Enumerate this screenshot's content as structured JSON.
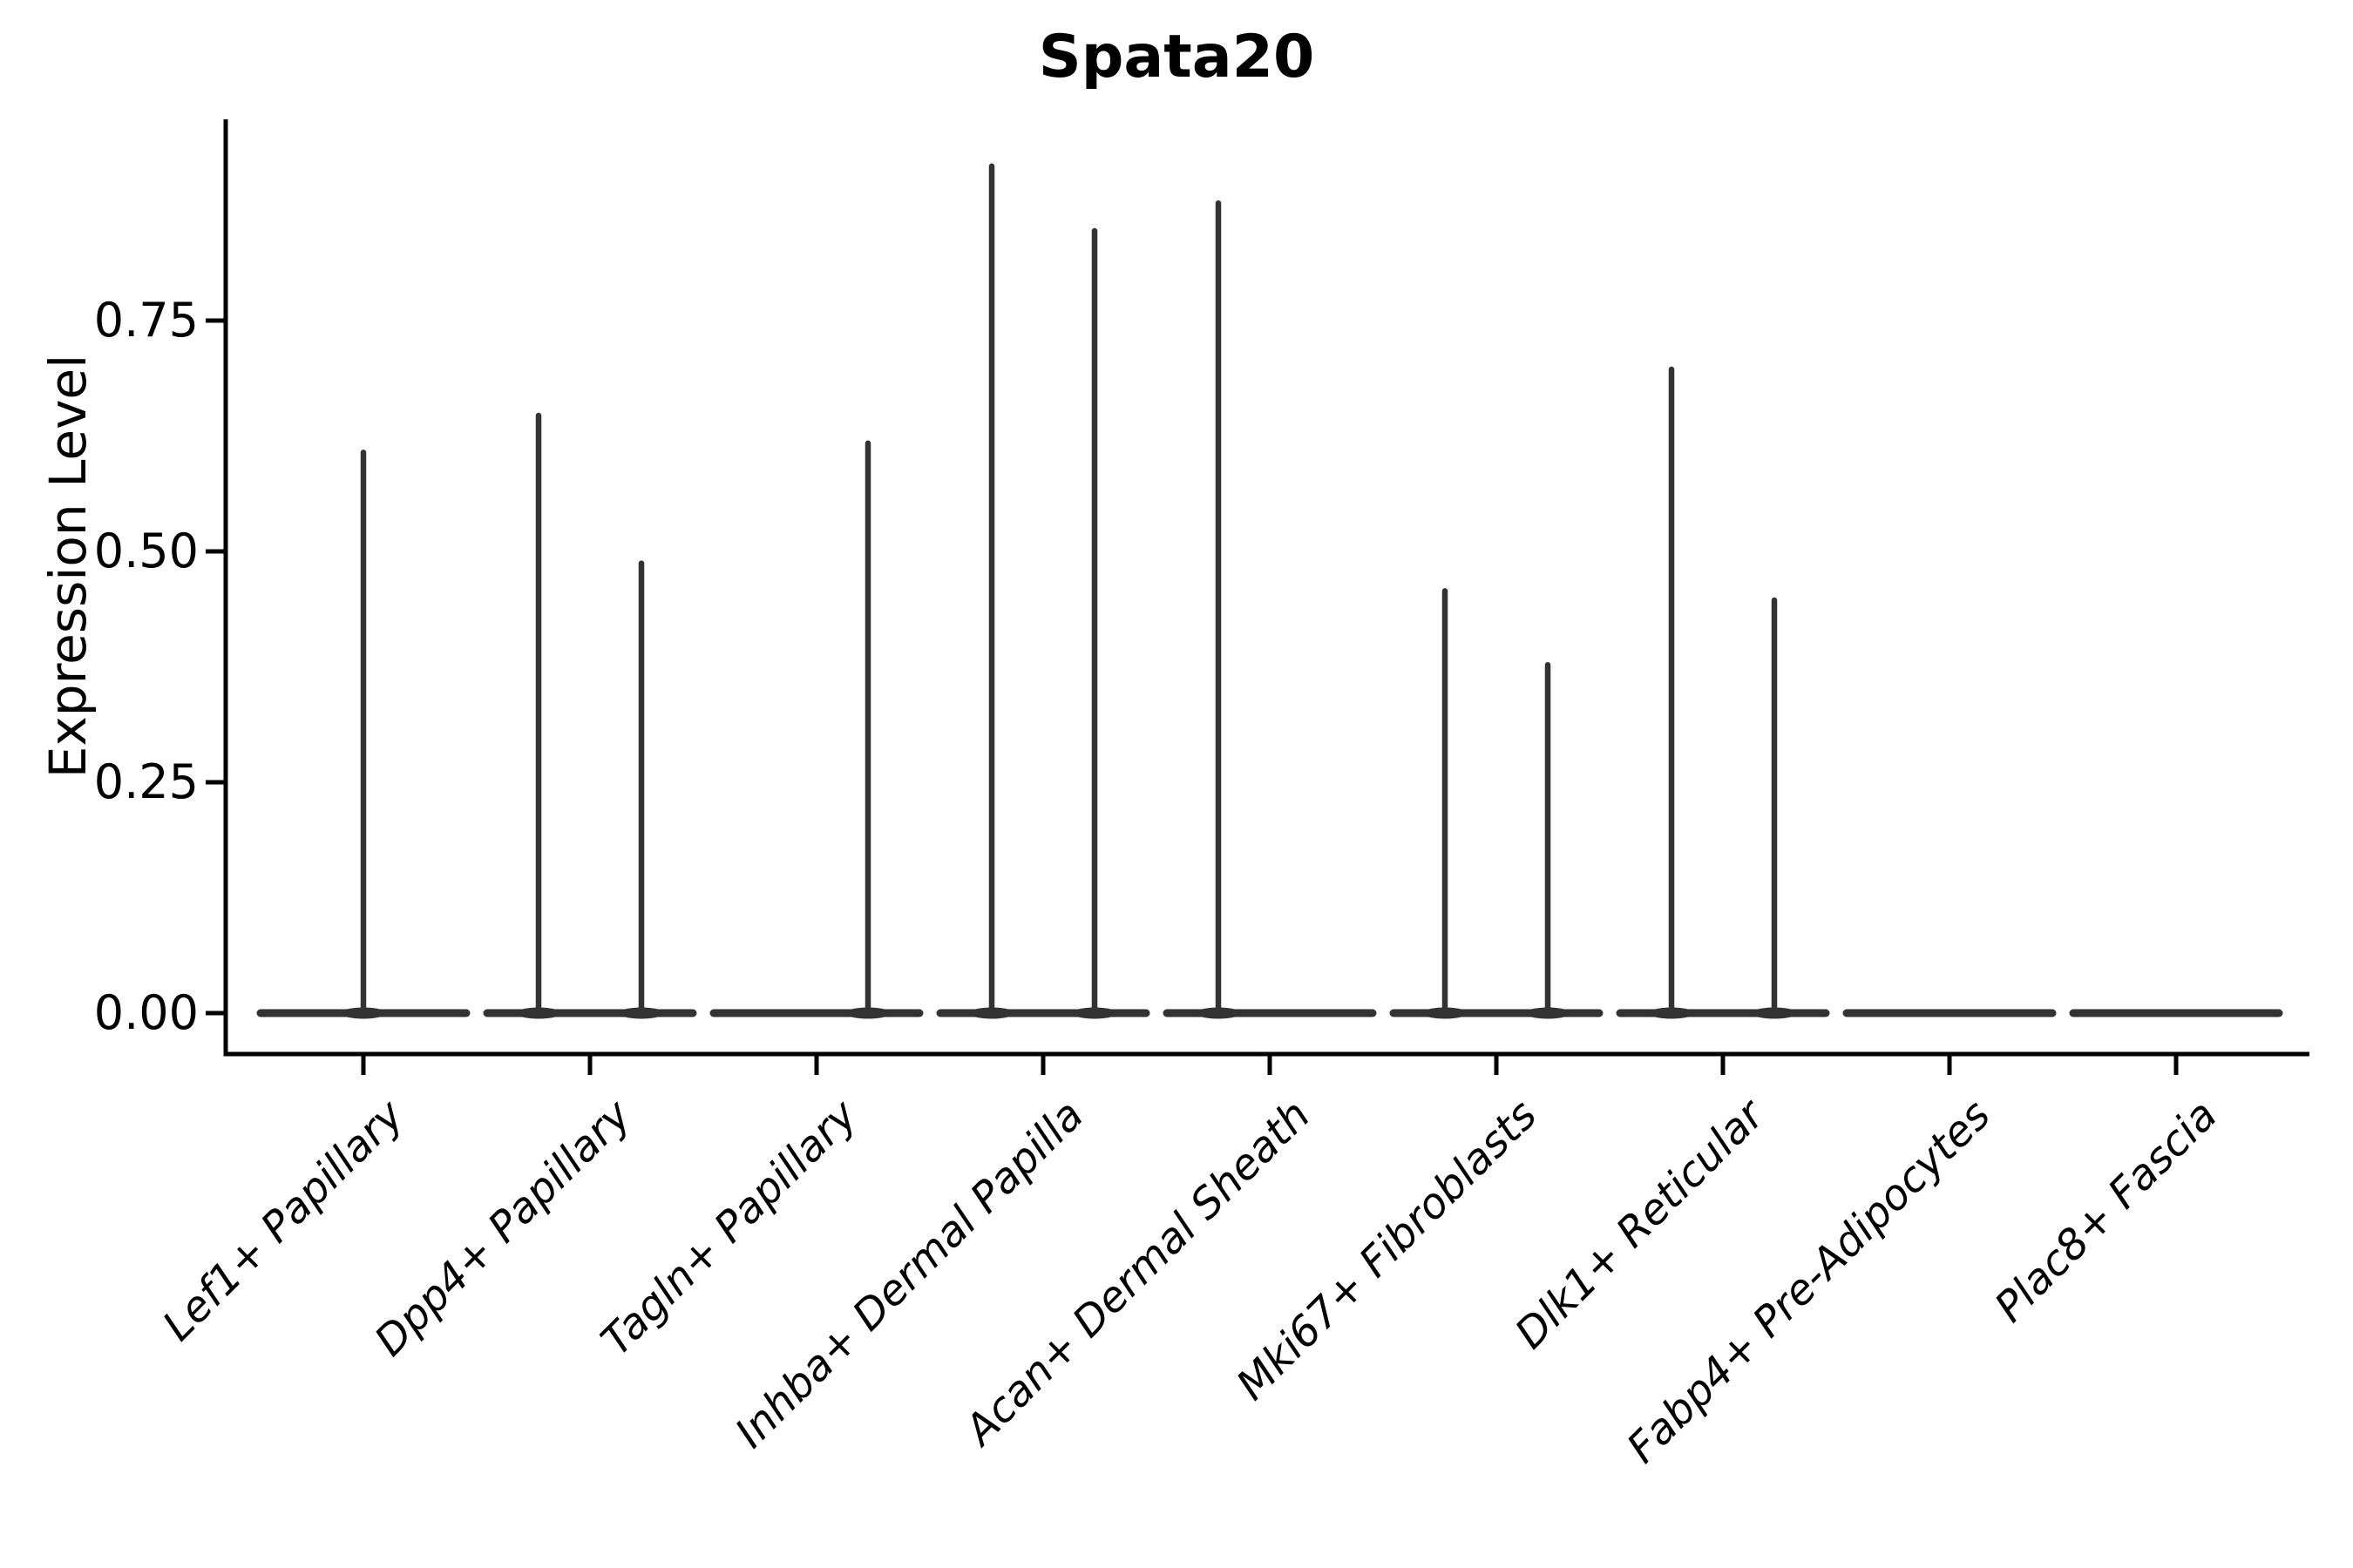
{
  "chart_data": {
    "type": "violin",
    "title": "Spata20",
    "ylabel": "Expression Level",
    "xlabel": "",
    "ylim": [
      0,
      0.97
    ],
    "yticks": [
      0.75,
      0.5,
      0.25,
      0.0
    ],
    "ytick_labels": [
      "0.75",
      "0.50",
      "0.25",
      "0.00"
    ],
    "grid": false,
    "legend": false,
    "colors": {
      "violin_stroke": "#333333",
      "axis": "#000000",
      "text": "#000000",
      "background": "#ffffff"
    },
    "categories": [
      {
        "label": "Lef1+ Papillary",
        "violins": [
          {
            "position": "center",
            "peak_expression": 0.61
          }
        ]
      },
      {
        "label": "Dpp4+ Papillary",
        "violins": [
          {
            "position": "left",
            "peak_expression": 0.65
          },
          {
            "position": "right",
            "peak_expression": 0.49
          }
        ]
      },
      {
        "label": "Tagln+ Papillary",
        "violins": [
          {
            "position": "right",
            "peak_expression": 0.62
          }
        ]
      },
      {
        "label": "Inhba+ Dermal Papilla",
        "violins": [
          {
            "position": "left",
            "peak_expression": 0.92
          },
          {
            "position": "right",
            "peak_expression": 0.85
          }
        ]
      },
      {
        "label": "Acan+ Dermal Sheath",
        "violins": [
          {
            "position": "left",
            "peak_expression": 0.88
          }
        ]
      },
      {
        "label": "Mki67+ Fibroblasts",
        "violins": [
          {
            "position": "left",
            "peak_expression": 0.46
          },
          {
            "position": "right",
            "peak_expression": 0.38
          }
        ]
      },
      {
        "label": "Dlk1+ Reticular",
        "violins": [
          {
            "position": "left",
            "peak_expression": 0.7
          },
          {
            "position": "right",
            "peak_expression": 0.45
          }
        ]
      },
      {
        "label": "Fabp4+ Pre-Adipocytes",
        "violins": []
      },
      {
        "label": "Plac8+ Fascia",
        "violins": []
      }
    ]
  }
}
